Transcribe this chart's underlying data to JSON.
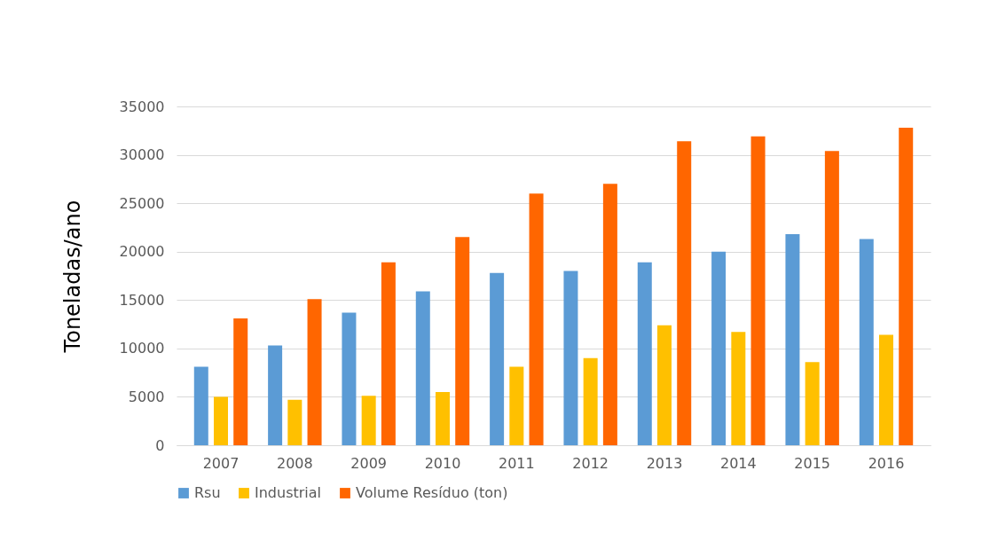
{
  "chart_data": {
    "type": "bar",
    "ylabel": "Toneladas/ano",
    "categories": [
      "2007",
      "2008",
      "2009",
      "2010",
      "2011",
      "2012",
      "2013",
      "2014",
      "2015",
      "2016"
    ],
    "series": [
      {
        "name": "Rsu",
        "color": "#5b9bd5",
        "values": [
          8100,
          10300,
          13700,
          15900,
          17800,
          18000,
          18900,
          20000,
          21800,
          21300
        ]
      },
      {
        "name": "Industrial",
        "color": "#ffc000",
        "values": [
          5000,
          4700,
          5100,
          5500,
          8100,
          9000,
          12400,
          11700,
          8600,
          11400
        ]
      },
      {
        "name": "Volume Resíduo (ton)",
        "color": "#ff6600",
        "values": [
          13100,
          15100,
          18900,
          21500,
          26000,
          27000,
          31400,
          31900,
          30400,
          32800
        ]
      }
    ],
    "ylim": [
      0,
      35000
    ],
    "yticks": [
      0,
      5000,
      10000,
      15000,
      20000,
      25000,
      30000,
      35000
    ],
    "grid": "y",
    "legend": "bottom"
  }
}
